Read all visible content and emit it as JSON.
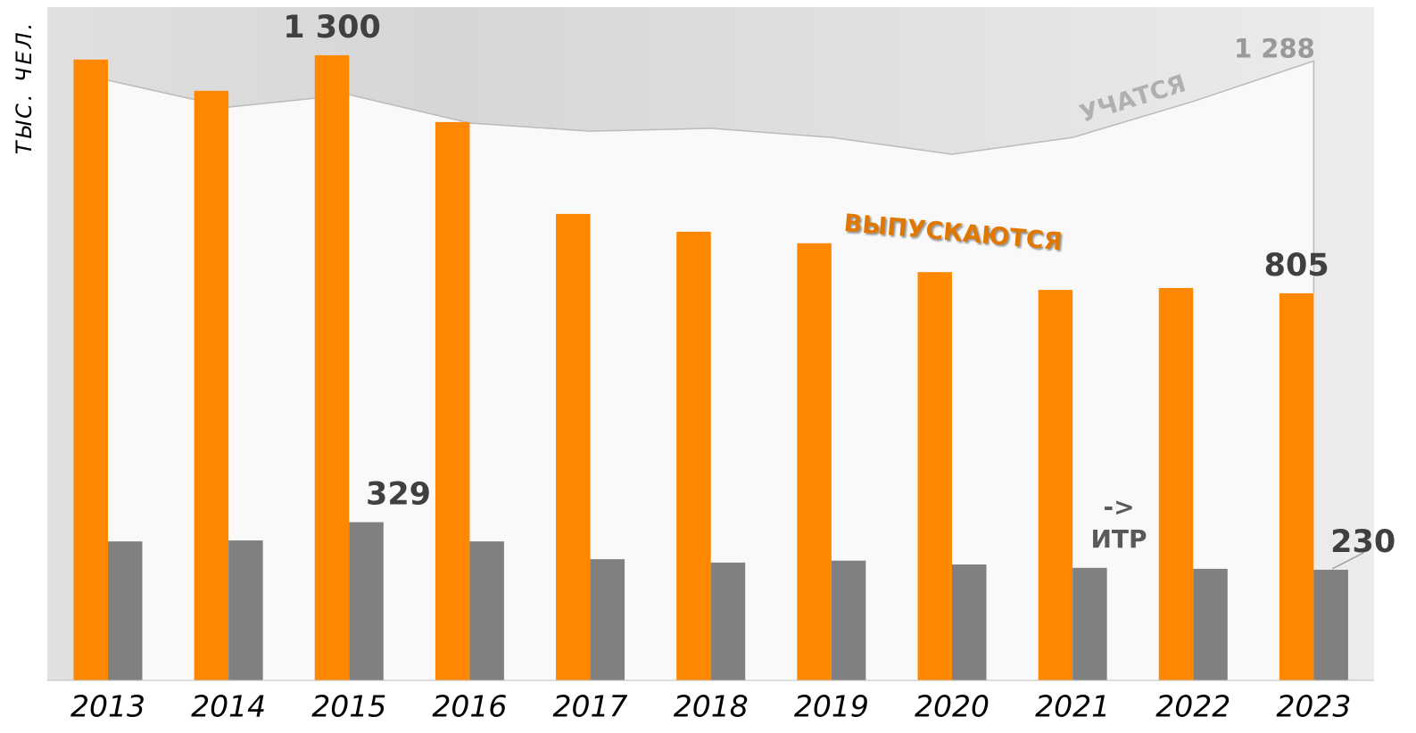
{
  "chart_data": {
    "type": "bar",
    "y_label": "ТЫС. ЧЕЛ.",
    "categories": [
      "2013",
      "2014",
      "2015",
      "2016",
      "2017",
      "2018",
      "2019",
      "2020",
      "2021",
      "2022",
      "2023"
    ],
    "series": [
      {
        "type": "bar",
        "color": "#ff8800",
        "values": [
          1291,
          1226,
          1300,
          1161,
          970,
          933,
          909,
          849,
          812,
          816,
          805
        ],
        "value_labels": [
          null,
          null,
          "1 300",
          null,
          null,
          null,
          null,
          null,
          null,
          null,
          "805"
        ]
      },
      {
        "type": "bar",
        "color": "#808080",
        "values": [
          289,
          291,
          329,
          289,
          252,
          245,
          249,
          241,
          234,
          232,
          230
        ],
        "value_labels": [
          null,
          null,
          "329",
          null,
          null,
          null,
          null,
          null,
          null,
          null,
          "230"
        ]
      },
      {
        "type": "area",
        "color": "#bbbbbb",
        "values": [
          1248,
          1192,
          1218,
          1159,
          1142,
          1148,
          1129,
          1094,
          1129,
          1204,
          1288
        ],
        "value_labels": [
          null,
          null,
          null,
          null,
          null,
          null,
          null,
          null,
          null,
          null,
          "1 288"
        ]
      }
    ],
    "annotations": [
      "УЧАТСЯ",
      "ВЫПУСКАЮТСЯ",
      "->",
      "ИТР"
    ],
    "ylim": [
      0,
      1400
    ]
  }
}
